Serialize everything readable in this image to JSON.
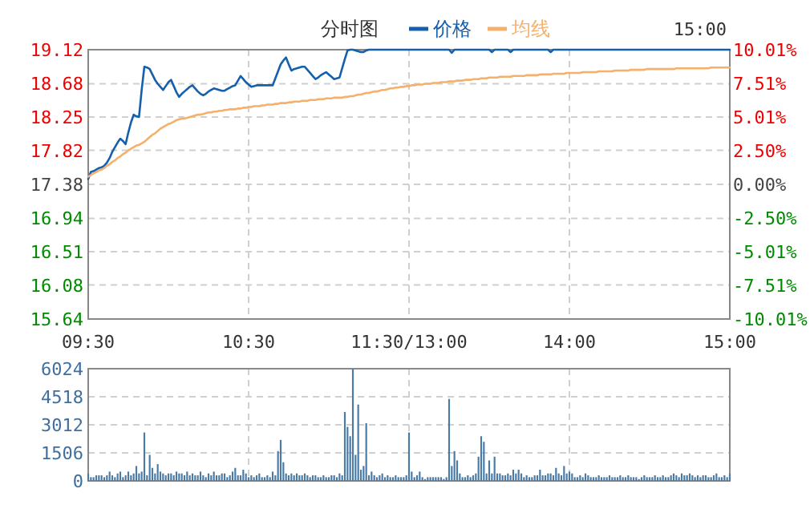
{
  "chart_data": [
    {
      "type": "line",
      "title": "分时图",
      "annotations": [
        "15:00"
      ],
      "legend": "top",
      "grid": true,
      "categories": [
        "09:30",
        null,
        null,
        null,
        null,
        null,
        null,
        null,
        null,
        null,
        null,
        null,
        null,
        null,
        null,
        null,
        null,
        null,
        null,
        null,
        null,
        null,
        null,
        null,
        null,
        null,
        null,
        null,
        null,
        null,
        null,
        null,
        null,
        null,
        null,
        null,
        null,
        null,
        null,
        null,
        null,
        null,
        null,
        null,
        null,
        null,
        null,
        null,
        null,
        null,
        null,
        null,
        null,
        null,
        null,
        null,
        null,
        null,
        null,
        null,
        "10:30",
        null,
        null,
        null,
        null,
        null,
        null,
        null,
        null,
        null,
        null,
        null,
        null,
        null,
        null,
        null,
        null,
        null,
        null,
        null,
        null,
        null,
        null,
        null,
        null,
        null,
        null,
        null,
        null,
        null,
        null,
        null,
        null,
        null,
        null,
        null,
        null,
        null,
        null,
        null,
        null,
        null,
        null,
        null,
        null,
        null,
        null,
        null,
        null,
        null,
        null,
        null,
        null,
        null,
        null,
        null,
        null,
        null,
        null,
        null,
        "11:30/13:00",
        null,
        null,
        null,
        null,
        null,
        null,
        null,
        null,
        null,
        null,
        null,
        null,
        null,
        null,
        null,
        null,
        null,
        null,
        null,
        null,
        null,
        null,
        null,
        null,
        null,
        null,
        null,
        null,
        null,
        null,
        null,
        null,
        null,
        null,
        null,
        null,
        null,
        null,
        null,
        null,
        null,
        null,
        null,
        null,
        null,
        null,
        null,
        null,
        null,
        null,
        null,
        null,
        null,
        null,
        null,
        null,
        null,
        null,
        null,
        "14:00",
        null,
        null,
        null,
        null,
        null,
        null,
        null,
        null,
        null,
        null,
        null,
        null,
        null,
        null,
        null,
        null,
        null,
        null,
        null,
        null,
        null,
        null,
        null,
        null,
        null,
        null,
        null,
        null,
        null,
        null,
        null,
        null,
        null,
        null,
        null,
        null,
        null,
        null,
        null,
        null,
        null,
        null,
        null,
        null,
        null,
        null,
        null,
        null,
        null,
        null,
        null,
        null,
        null,
        null,
        null,
        null,
        null,
        null,
        null,
        "15:00"
      ],
      "ylim": [
        15.64,
        19.12
      ],
      "yticks": [
        15.64,
        16.08,
        16.51,
        16.94,
        17.38,
        17.82,
        18.25,
        18.68,
        19.12
      ],
      "y2lim": [
        -10.01,
        10.01
      ],
      "y2ticks": [
        {
          "value": -10.01,
          "label": "-10.01%"
        },
        {
          "value": -7.51,
          "label": "-7.51%"
        },
        {
          "value": -5.01,
          "label": "-5.01%"
        },
        {
          "value": -2.5,
          "label": "-2.50%"
        },
        {
          "value": 0,
          "label": "0.00%"
        },
        {
          "value": 2.5,
          "label": "2.50%"
        },
        {
          "value": 5.01,
          "label": "5.01%"
        },
        {
          "value": 7.51,
          "label": "7.51%"
        },
        {
          "value": 10.01,
          "label": "10.01%"
        }
      ],
      "series": [
        {
          "name": "价格",
          "color": "#1560ac",
          "values": [
            17.45,
            17.54,
            17.55,
            17.57,
            17.59,
            17.6,
            17.62,
            17.66,
            17.72,
            17.8,
            17.86,
            17.92,
            17.97,
            17.94,
            17.9,
            18.05,
            18.18,
            18.28,
            18.26,
            18.25,
            18.6,
            18.9,
            18.89,
            18.87,
            18.8,
            18.73,
            18.68,
            18.64,
            18.6,
            18.65,
            18.7,
            18.73,
            18.65,
            18.57,
            18.51,
            18.55,
            18.58,
            18.61,
            18.64,
            18.66,
            18.62,
            18.58,
            18.55,
            18.53,
            18.55,
            18.58,
            18.6,
            18.62,
            18.61,
            18.6,
            18.59,
            18.59,
            18.61,
            18.63,
            18.65,
            18.66,
            18.72,
            18.78,
            18.74,
            18.7,
            18.67,
            18.64,
            18.65,
            18.66,
            18.66,
            18.66,
            18.66,
            18.66,
            18.66,
            18.66,
            18.75,
            18.84,
            18.93,
            18.98,
            19.02,
            18.93,
            18.85,
            18.87,
            18.88,
            18.89,
            18.9,
            18.9,
            18.86,
            18.82,
            18.78,
            18.74,
            18.76,
            18.79,
            18.81,
            18.83,
            18.8,
            18.77,
            18.74,
            18.75,
            18.76,
            18.88,
            19.0,
            19.11,
            19.12,
            19.12,
            19.11,
            19.1,
            19.09,
            19.09,
            19.11,
            19.12,
            19.12,
            19.12,
            19.12,
            19.12,
            19.12,
            19.12,
            19.12,
            19.12,
            19.12,
            19.12,
            19.12,
            19.12,
            19.12,
            19.12,
            19.12,
            19.12,
            19.12,
            19.12,
            19.12,
            19.12,
            19.12,
            19.12,
            19.12,
            19.12,
            19.12,
            19.12,
            19.12,
            19.12,
            19.12,
            19.12,
            19.08,
            19.12,
            19.12,
            19.12,
            19.12,
            19.12,
            19.12,
            19.12,
            19.12,
            19.12,
            19.12,
            19.12,
            19.12,
            19.12,
            19.12,
            19.09,
            19.12,
            19.12,
            19.12,
            19.12,
            19.12,
            19.12,
            19.09,
            19.12,
            19.12,
            19.12,
            19.12,
            19.12,
            19.12,
            19.12,
            19.12,
            19.12,
            19.12,
            19.12,
            19.12,
            19.12,
            19.12,
            19.09,
            19.12,
            19.12,
            19.12,
            19.12,
            19.12,
            19.12,
            19.12,
            19.12,
            19.12,
            19.12,
            19.12,
            19.12,
            19.12,
            19.12,
            19.12,
            19.12,
            19.12,
            19.12,
            19.12,
            19.12,
            19.12,
            19.12,
            19.12,
            19.12,
            19.12,
            19.12,
            19.12,
            19.12,
            19.12,
            19.12,
            19.12,
            19.12,
            19.12,
            19.12,
            19.12,
            19.12,
            19.12,
            19.12,
            19.12,
            19.12,
            19.12,
            19.12,
            19.12,
            19.12,
            19.12,
            19.12,
            19.12,
            19.12,
            19.12,
            19.12,
            19.12,
            19.12,
            19.12,
            19.12,
            19.12,
            19.12,
            19.12,
            19.12,
            19.12,
            19.12,
            19.12,
            19.12,
            19.12,
            19.12,
            19.12,
            19.12,
            19.12
          ]
        },
        {
          "name": "均线",
          "color": "#f5b06b",
          "values": [
            17.48,
            17.5,
            17.52,
            17.54,
            17.56,
            17.57,
            17.59,
            17.62,
            17.64,
            17.67,
            17.69,
            17.72,
            17.74,
            17.77,
            17.79,
            17.82,
            17.84,
            17.86,
            17.88,
            17.89,
            17.91,
            17.93,
            17.96,
            17.99,
            18.02,
            18.04,
            18.07,
            18.1,
            18.12,
            18.14,
            18.16,
            18.17,
            18.19,
            18.21,
            18.22,
            18.23,
            18.23,
            18.24,
            18.25,
            18.26,
            18.27,
            18.28,
            18.28,
            18.29,
            18.3,
            18.31,
            18.31,
            18.32,
            18.32,
            18.33,
            18.33,
            18.34,
            18.34,
            18.35,
            18.35,
            18.35,
            18.36,
            18.36,
            18.37,
            18.37,
            18.38,
            18.38,
            18.39,
            18.39,
            18.39,
            18.4,
            18.4,
            18.41,
            18.41,
            18.41,
            18.42,
            18.42,
            18.43,
            18.43,
            18.43,
            18.44,
            18.44,
            18.45,
            18.45,
            18.45,
            18.46,
            18.46,
            18.46,
            18.47,
            18.47,
            18.47,
            18.48,
            18.48,
            18.48,
            18.49,
            18.49,
            18.49,
            18.5,
            18.5,
            18.5,
            18.5,
            18.51,
            18.51,
            18.52,
            18.52,
            18.53,
            18.54,
            18.54,
            18.55,
            18.56,
            18.56,
            18.57,
            18.58,
            18.58,
            18.59,
            18.6,
            18.6,
            18.61,
            18.62,
            18.62,
            18.63,
            18.63,
            18.64,
            18.64,
            18.65,
            18.65,
            18.66,
            18.66,
            18.67,
            18.67,
            18.67,
            18.68,
            18.68,
            18.68,
            18.69,
            18.69,
            18.69,
            18.7,
            18.7,
            18.7,
            18.71,
            18.71,
            18.71,
            18.72,
            18.72,
            18.72,
            18.73,
            18.73,
            18.73,
            18.74,
            18.74,
            18.74,
            18.75,
            18.75,
            18.75,
            18.76,
            18.76,
            18.76,
            18.76,
            18.77,
            18.77,
            18.77,
            18.77,
            18.77,
            18.78,
            18.78,
            18.78,
            18.78,
            18.78,
            18.79,
            18.79,
            18.79,
            18.79,
            18.79,
            18.8,
            18.8,
            18.8,
            18.8,
            18.8,
            18.81,
            18.81,
            18.81,
            18.81,
            18.81,
            18.82,
            18.82,
            18.82,
            18.82,
            18.82,
            18.82,
            18.83,
            18.83,
            18.83,
            18.83,
            18.83,
            18.83,
            18.84,
            18.84,
            18.84,
            18.84,
            18.84,
            18.84,
            18.85,
            18.85,
            18.85,
            18.85,
            18.85,
            18.85,
            18.86,
            18.86,
            18.86,
            18.86,
            18.86,
            18.86,
            18.87,
            18.87,
            18.87,
            18.87,
            18.87,
            18.87,
            18.87,
            18.87,
            18.87,
            18.87,
            18.87,
            18.88,
            18.88,
            18.88,
            18.88,
            18.88,
            18.88,
            18.88,
            18.88,
            18.88,
            18.88,
            18.88,
            18.88,
            18.88,
            18.89,
            18.89,
            18.89,
            18.89,
            18.89,
            18.89,
            18.89,
            18.89
          ]
        }
      ]
    },
    {
      "type": "bar",
      "grid": true,
      "tick_labels": "y",
      "categories": [
        null,
        null,
        null,
        null,
        null,
        null,
        null,
        null,
        null,
        null,
        null,
        null,
        null,
        null,
        null,
        null,
        null,
        null,
        null,
        null,
        null,
        null,
        null,
        null,
        null,
        null,
        null,
        null,
        null,
        null,
        null,
        null,
        null,
        null,
        null,
        null,
        null,
        null,
        null,
        null,
        null,
        null,
        null,
        null,
        null,
        null,
        null,
        null,
        null,
        null,
        null,
        null,
        null,
        null,
        null,
        null,
        null,
        null,
        null,
        null,
        null,
        null,
        null,
        null,
        null,
        null,
        null,
        null,
        null,
        null,
        null,
        null,
        null,
        null,
        null,
        null,
        null,
        null,
        null,
        null,
        null,
        null,
        null,
        null,
        null,
        null,
        null,
        null,
        null,
        null,
        null,
        null,
        null,
        null,
        null,
        null,
        null,
        null,
        null,
        null,
        null,
        null,
        null,
        null,
        null,
        null,
        null,
        null,
        null,
        null,
        null,
        null,
        null,
        null,
        null,
        null,
        null,
        null,
        null,
        null,
        null,
        null,
        null,
        null,
        null,
        null,
        null,
        null,
        null,
        null,
        null,
        null,
        null,
        null,
        null,
        null,
        null,
        null,
        null,
        null,
        null,
        null,
        null,
        null,
        null,
        null,
        null,
        null,
        null,
        null,
        null,
        null,
        null,
        null,
        null,
        null,
        null,
        null,
        null,
        null,
        null,
        null,
        null,
        null,
        null,
        null,
        null,
        null,
        null,
        null,
        null,
        null,
        null,
        null,
        null,
        null,
        null,
        null,
        null,
        null,
        null,
        null,
        null,
        null,
        null,
        null,
        null,
        null,
        null,
        null,
        null,
        null,
        null,
        null,
        null,
        null,
        null,
        null,
        null,
        null,
        null,
        null,
        null,
        null,
        null,
        null,
        null,
        null,
        null,
        null,
        null,
        null,
        null,
        null,
        null,
        null,
        null,
        null,
        null,
        null,
        null,
        null,
        null,
        null,
        null,
        null,
        null,
        null,
        null,
        null,
        null,
        null,
        null,
        null,
        null,
        null,
        null,
        null,
        null,
        null,
        null
      ],
      "ylim": [
        0,
        6024
      ],
      "yticks": [
        0,
        1506,
        3012,
        4518,
        6024
      ],
      "series": [
        {
          "color": "#4a7ba6",
          "values": [
            400,
            200,
            200,
            300,
            300,
            300,
            200,
            300,
            500,
            300,
            200,
            400,
            500,
            200,
            300,
            500,
            300,
            400,
            800,
            400,
            500,
            2600,
            300,
            1400,
            700,
            400,
            900,
            500,
            400,
            300,
            400,
            400,
            300,
            500,
            400,
            400,
            300,
            500,
            300,
            400,
            300,
            300,
            500,
            300,
            200,
            400,
            300,
            500,
            300,
            300,
            400,
            400,
            200,
            300,
            500,
            700,
            300,
            300,
            600,
            400,
            200,
            300,
            200,
            300,
            400,
            200,
            200,
            300,
            200,
            500,
            300,
            1600,
            2200,
            1000,
            400,
            300,
            400,
            300,
            400,
            300,
            300,
            400,
            300,
            200,
            300,
            300,
            200,
            200,
            300,
            200,
            200,
            300,
            300,
            200,
            400,
            300,
            3700,
            2900,
            2400,
            6000,
            1400,
            4100,
            600,
            800,
            3100,
            300,
            500,
            300,
            200,
            300,
            400,
            200,
            300,
            200,
            200,
            300,
            200,
            200,
            200,
            300,
            2600,
            500,
            200,
            300,
            500,
            200,
            100,
            200,
            200,
            200,
            200,
            200,
            200,
            100,
            200,
            4400,
            800,
            1600,
            1100,
            400,
            200,
            200,
            300,
            200,
            300,
            400,
            1300,
            2400,
            2100,
            400,
            1100,
            400,
            1300,
            400,
            400,
            300,
            300,
            400,
            300,
            600,
            400,
            600,
            400,
            200,
            300,
            200,
            200,
            300,
            300,
            600,
            300,
            300,
            400,
            400,
            300,
            700,
            400,
            300,
            800,
            400,
            500,
            400,
            200,
            200,
            300,
            200,
            400,
            300,
            200,
            200,
            200,
            300,
            200,
            200,
            200,
            300,
            200,
            200,
            200,
            300,
            200,
            200,
            300,
            200,
            200,
            200,
            100,
            200,
            300,
            200,
            200,
            200,
            300,
            200,
            200,
            300,
            200,
            200,
            300,
            400,
            300,
            200,
            400,
            300,
            300,
            400,
            300,
            200,
            300,
            200,
            300,
            300,
            200,
            200,
            300,
            400,
            200,
            200,
            300,
            200,
            400
          ]
        }
      ]
    }
  ]
}
